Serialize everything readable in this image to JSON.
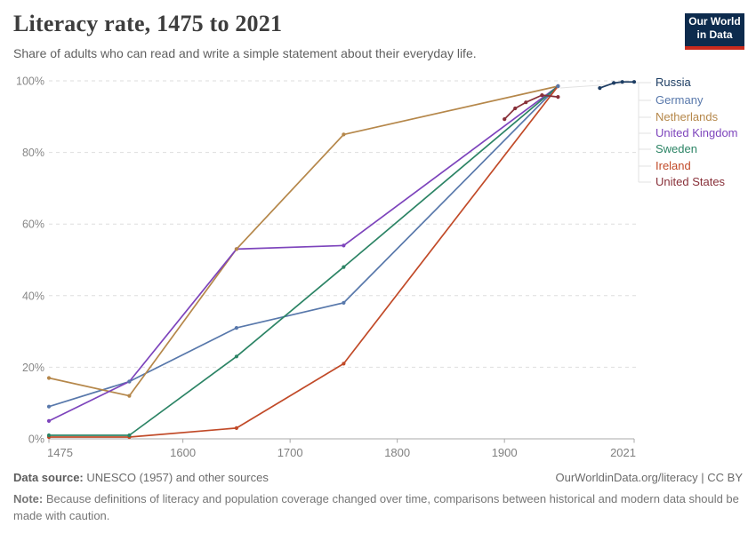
{
  "header": {
    "title": "Literacy rate, 1475 to 2021",
    "subtitle": "Share of adults who can read and write a simple statement about their everyday life."
  },
  "logo": {
    "line1": "Our World",
    "line2": "in Data",
    "bg_color": "#0d2b4d",
    "accent_color": "#c92a1d"
  },
  "footer": {
    "source_label": "Data source:",
    "source_text": "UNESCO (1957) and other sources",
    "link": "OurWorldinData.org/literacy | CC BY",
    "note_label": "Note:",
    "note_text": "Because definitions of literacy and population coverage changed over time, comparisons between historical and modern data should be made with caution."
  },
  "chart_data": {
    "type": "line",
    "title": "Literacy rate, 1475 to 2021",
    "xlabel": "",
    "ylabel": "",
    "xlim": [
      1475,
      2021
    ],
    "ylim": [
      0,
      100
    ],
    "x_ticks": [
      1475,
      1600,
      1700,
      1800,
      1900,
      2021
    ],
    "y_ticks": [
      0,
      20,
      40,
      60,
      80,
      100
    ],
    "y_tick_suffix": "%",
    "grid": "horizontal-dashed",
    "legend_position": "right",
    "series": [
      {
        "name": "Russia",
        "color": "#1d3d63",
        "points": [
          [
            1989,
            98
          ],
          [
            2002,
            99.4
          ],
          [
            2010,
            99.7
          ],
          [
            2021,
            99.7
          ]
        ]
      },
      {
        "name": "Germany",
        "color": "#5878ab",
        "points": [
          [
            1475,
            9
          ],
          [
            1550,
            16
          ],
          [
            1650,
            31
          ],
          [
            1750,
            38
          ],
          [
            1950,
            98.5
          ]
        ]
      },
      {
        "name": "Netherlands",
        "color": "#b5874a",
        "points": [
          [
            1475,
            17
          ],
          [
            1550,
            12
          ],
          [
            1650,
            53
          ],
          [
            1750,
            85
          ],
          [
            1950,
            98.5
          ]
        ]
      },
      {
        "name": "United Kingdom",
        "color": "#7d44bc",
        "points": [
          [
            1475,
            5
          ],
          [
            1550,
            16
          ],
          [
            1650,
            53
          ],
          [
            1750,
            54
          ],
          [
            1950,
            98.5
          ]
        ]
      },
      {
        "name": "Sweden",
        "color": "#2c8465",
        "points": [
          [
            1475,
            1
          ],
          [
            1550,
            1
          ],
          [
            1650,
            23
          ],
          [
            1750,
            48
          ],
          [
            1950,
            98.5
          ]
        ]
      },
      {
        "name": "Ireland",
        "color": "#c14a28",
        "points": [
          [
            1475,
            0.5
          ],
          [
            1550,
            0.5
          ],
          [
            1650,
            3
          ],
          [
            1750,
            21
          ],
          [
            1950,
            98.5
          ]
        ]
      },
      {
        "name": "United States",
        "color": "#883039",
        "points": [
          [
            1900,
            89.3
          ],
          [
            1910,
            92.3
          ],
          [
            1920,
            94
          ],
          [
            1935,
            96
          ],
          [
            1950,
            95.5
          ]
        ]
      }
    ]
  }
}
